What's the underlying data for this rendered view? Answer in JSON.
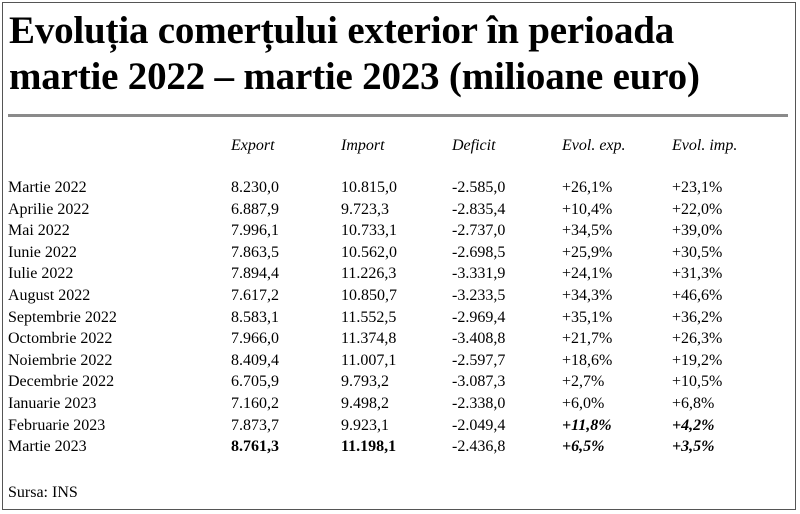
{
  "title_line1": "Evoluția comerțului exterior în perioada",
  "title_line2": "martie 2022 – martie 2023 (milioane euro)",
  "headers": {
    "export": "Export",
    "import": "Import",
    "deficit": "Deficit",
    "evol_exp": "Evol. exp.",
    "evol_imp": "Evol. imp."
  },
  "rows": [
    {
      "month": "Martie 2022",
      "export": "8.230,0",
      "import": "10.815,0",
      "deficit": "-2.585,0",
      "evol_exp": "+26,1%",
      "evol_imp": "+23,1%"
    },
    {
      "month": "Aprilie 2022",
      "export": "6.887,9",
      "import": "9.723,3",
      "deficit": "-2.835,4",
      "evol_exp": "+10,4%",
      "evol_imp": "+22,0%"
    },
    {
      "month": "Mai 2022",
      "export": "7.996,1",
      "import": "10.733,1",
      "deficit": "-2.737,0",
      "evol_exp": "+34,5%",
      "evol_imp": "+39,0%"
    },
    {
      "month": "Iunie 2022",
      "export": "7.863,5",
      "import": "10.562,0",
      "deficit": "-2.698,5",
      "evol_exp": "+25,9%",
      "evol_imp": "+30,5%"
    },
    {
      "month": "Iulie 2022",
      "export": "7.894,4",
      "import": "11.226,3",
      "deficit": "-3.331,9",
      "evol_exp": "+24,1%",
      "evol_imp": "+31,3%"
    },
    {
      "month": "August 2022",
      "export": "7.617,2",
      "import": "10.850,7",
      "deficit": "-3.233,5",
      "evol_exp": "+34,3%",
      "evol_imp": "+46,6%"
    },
    {
      "month": "Septembrie 2022",
      "export": "8.583,1",
      "import": "11.552,5",
      "deficit": "-2.969,4",
      "evol_exp": "+35,1%",
      "evol_imp": "+36,2%"
    },
    {
      "month": "Octombrie 2022",
      "export": "7.966,0",
      "import": "11.374,8",
      "deficit": "-3.408,8",
      "evol_exp": "+21,7%",
      "evol_imp": "+26,3%"
    },
    {
      "month": "Noiembrie 2022",
      "export": "8.409,4",
      "import": "11.007,1",
      "deficit": "-2.597,7",
      "evol_exp": "+18,6%",
      "evol_imp": "+19,2%"
    },
    {
      "month": "Decembrie 2022",
      "export": "6.705,9",
      "import": "9.793,2",
      "deficit": "-3.087,3",
      "evol_exp": "+2,7%",
      "evol_imp": "+10,5%"
    },
    {
      "month": "Ianuarie 2023",
      "export": "7.160,2",
      "import": "9.498,2",
      "deficit": "-2.338,0",
      "evol_exp": "+6,0%",
      "evol_imp": "+6,8%"
    },
    {
      "month": "Februarie 2023",
      "export": "7.873,7",
      "import": "9.923,1",
      "deficit": "-2.049,4",
      "evol_exp": "+11,8%",
      "evol_imp": "+4,2%"
    },
    {
      "month": "Martie 2023",
      "export": "8.761,3",
      "import": "11.198,1",
      "deficit": "-2.436,8",
      "evol_exp": "+6,5%",
      "evol_imp": "+3,5%"
    }
  ],
  "source": "Sursa: INS"
}
